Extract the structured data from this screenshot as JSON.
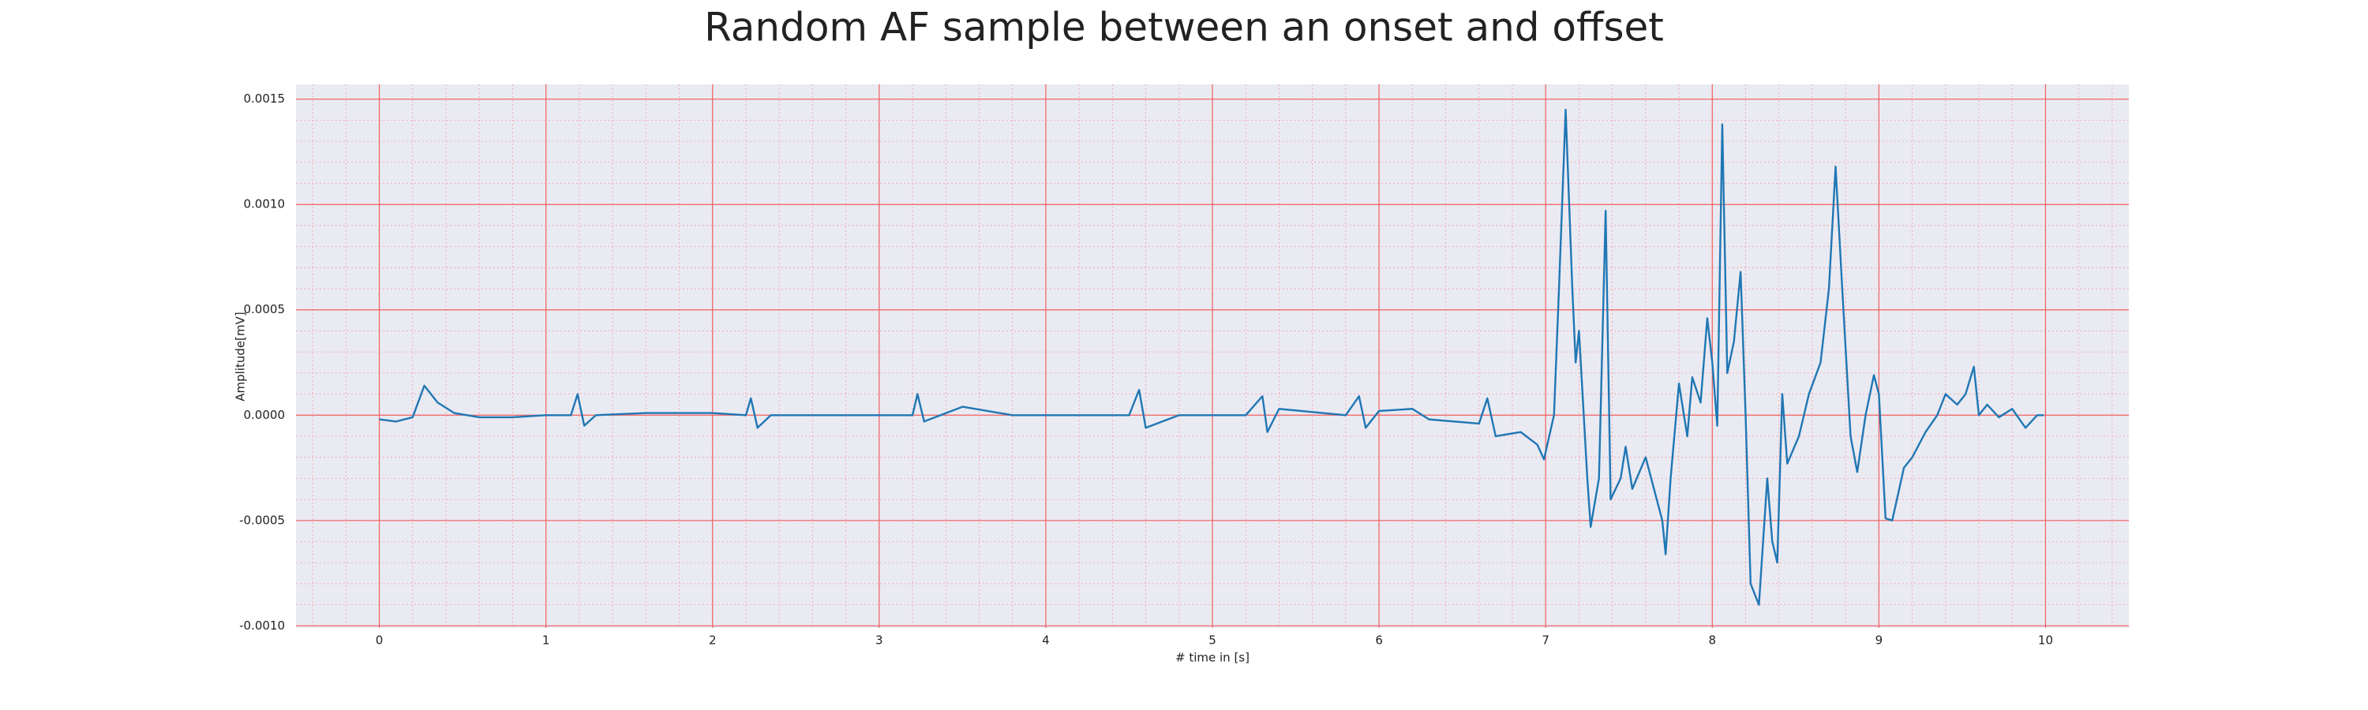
{
  "chart_data": {
    "type": "line",
    "title": "Random AF sample between an onset and offset",
    "xlabel": "# time in [s]",
    "ylabel": "Amplitude[mV]",
    "x": [
      0,
      0.1,
      0.2,
      0.27,
      0.35,
      0.45,
      0.6,
      0.8,
      1.0,
      1.15,
      1.19,
      1.23,
      1.3,
      1.6,
      2.0,
      2.2,
      2.23,
      2.27,
      2.35,
      2.8,
      3.2,
      3.23,
      3.27,
      3.5,
      3.8,
      4.5,
      4.56,
      4.6,
      4.8,
      5.2,
      5.3,
      5.33,
      5.4,
      5.8,
      5.88,
      5.92,
      6.0,
      6.2,
      6.3,
      6.6,
      6.65,
      6.7,
      6.85,
      6.95,
      6.99,
      7.05,
      7.08,
      7.12,
      7.16,
      7.18,
      7.2,
      7.25,
      7.27,
      7.32,
      7.36,
      7.39,
      7.45,
      7.48,
      7.52,
      7.6,
      7.7,
      7.72,
      7.75,
      7.8,
      7.85,
      7.88,
      7.93,
      7.97,
      8.0,
      8.03,
      8.06,
      8.09,
      8.13,
      8.17,
      8.2,
      8.23,
      8.28,
      8.33,
      8.36,
      8.39,
      8.42,
      8.45,
      8.52,
      8.58,
      8.65,
      8.7,
      8.74,
      8.78,
      8.83,
      8.87,
      8.92,
      8.97,
      9.0,
      9.04,
      9.08,
      9.15,
      9.2,
      9.28,
      9.35,
      9.4,
      9.47,
      9.52,
      9.57,
      9.6,
      9.65,
      9.72,
      9.8,
      9.88,
      9.95,
      9.99
    ],
    "series": [
      {
        "name": "signal",
        "color": "#1f77b4",
        "values": [
          -2e-05,
          -3e-05,
          -1e-05,
          0.00014,
          6e-05,
          1e-05,
          -1e-05,
          -1e-05,
          0.0,
          0.0,
          0.0001,
          -5e-05,
          0.0,
          1e-05,
          1e-05,
          0.0,
          8e-05,
          -6e-05,
          0.0,
          0.0,
          0.0,
          0.0001,
          -3e-05,
          4e-05,
          0.0,
          0.0,
          0.00012,
          -6e-05,
          0.0,
          0.0,
          9e-05,
          -8e-05,
          3e-05,
          0.0,
          9e-05,
          -6e-05,
          2e-05,
          3e-05,
          -2e-05,
          -4e-05,
          8e-05,
          -0.0001,
          -8e-05,
          -0.00014,
          -0.00021,
          0.0,
          0.0006,
          0.00145,
          0.0006,
          0.00025,
          0.0004,
          -0.0003,
          -0.00053,
          -0.0003,
          0.00097,
          -0.0004,
          -0.0003,
          -0.00015,
          -0.00035,
          -0.0002,
          -0.0005,
          -0.00066,
          -0.0003,
          0.00015,
          -0.0001,
          0.00018,
          6e-05,
          0.00046,
          0.00025,
          -5e-05,
          0.00138,
          0.0002,
          0.00035,
          0.00068,
          0.0,
          -0.0008,
          -0.0009,
          -0.0003,
          -0.0006,
          -0.0007,
          0.0001,
          -0.00023,
          -0.0001,
          0.0001,
          0.00025,
          0.0006,
          0.00118,
          0.0006,
          -0.0001,
          -0.00027,
          0.0,
          0.00019,
          0.0001,
          -0.00049,
          -0.0005,
          -0.00025,
          -0.0002,
          -8e-05,
          0.0,
          0.0001,
          5e-05,
          0.0001,
          0.00023,
          0.0,
          5e-05,
          -1e-05,
          3e-05,
          -6e-05,
          0.0,
          0.0
        ]
      }
    ],
    "xlim": [
      -0.5,
      10.5
    ],
    "ylim": [
      -0.00101,
      0.00157
    ],
    "xticks": [
      0,
      1,
      2,
      3,
      4,
      5,
      6,
      7,
      8,
      9,
      10
    ],
    "yticks": [
      {
        "value": -0.001,
        "label": "-0.0010"
      },
      -0.0005,
      {
        "value": 0,
        "label": "0.0000"
      },
      0.0005,
      {
        "value": 0.001,
        "label": "0.0010"
      },
      0.0015
    ],
    "grid": true
  }
}
